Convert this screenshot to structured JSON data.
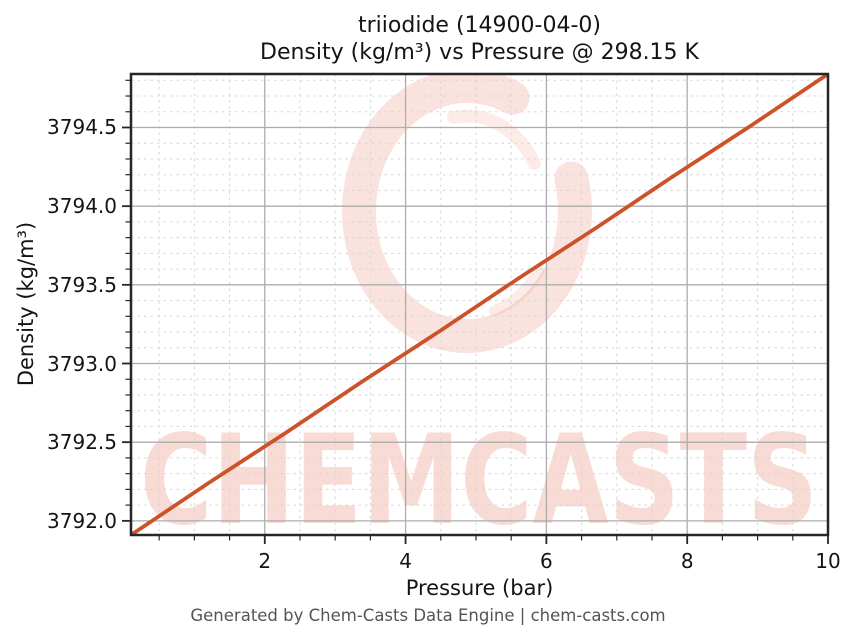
{
  "chart_data": {
    "type": "line",
    "title_lines": [
      "triiodide (14900-04-0)",
      "Density (kg/m³) vs Pressure @ 298.15 K"
    ],
    "compound": "triiodide",
    "cas_number": "14900-04-0",
    "temperature": "298.15 K",
    "xlabel": "Pressure (bar)",
    "ylabel": "Density (kg/m³)",
    "xlim": [
      0.1,
      10
    ],
    "ylim": [
      3791.91,
      3794.84
    ],
    "xticks": {
      "values": [
        2,
        4,
        6,
        8,
        10
      ],
      "labels": [
        "2",
        "4",
        "6",
        "8",
        "10"
      ],
      "minor_step": 0.5
    },
    "yticks": {
      "values": [
        3792.0,
        3792.5,
        3793.0,
        3793.5,
        3794.0,
        3794.5
      ],
      "labels": [
        "3792.0",
        "3792.5",
        "3793.0",
        "3793.5",
        "3794.0",
        "3794.5"
      ],
      "minor_step": 0.1
    },
    "grid": {
      "major": true,
      "minor": true
    },
    "legend": "none",
    "series": [
      {
        "name": "Density",
        "color": "#cc5329",
        "x": [
          0.1,
          1.2,
          2.3,
          3.4,
          4.5,
          5.6,
          6.7,
          7.8,
          8.9,
          10.0
        ],
        "y": [
          3791.91,
          3792.24,
          3792.56,
          3792.89,
          3793.21,
          3793.54,
          3793.86,
          3794.19,
          3794.51,
          3794.84
        ]
      }
    ]
  },
  "watermark": {
    "text": "CHEMCASTS",
    "logo": "brush-circle-logo",
    "color": "#e4573a"
  },
  "footer": {
    "text": "Generated by Chem-Casts Data Engine | chem-casts.com"
  }
}
